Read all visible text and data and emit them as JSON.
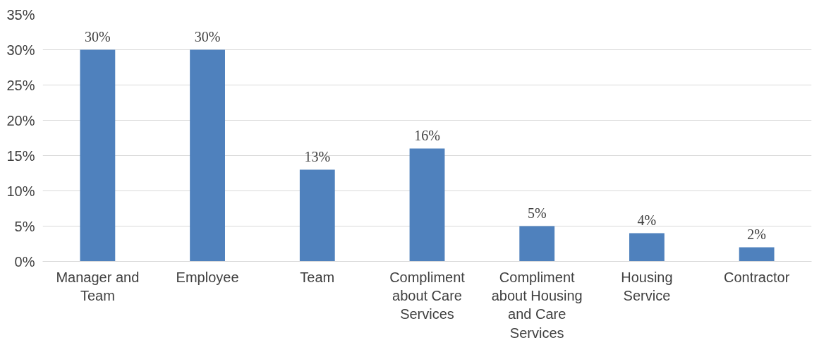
{
  "chart_data": {
    "type": "bar",
    "categories": [
      "Manager and Team",
      "Employee",
      "Team",
      "Compliment about Care Services",
      "Compliment about Housing and Care Services",
      "Housing Service",
      "Contractor"
    ],
    "values": [
      30,
      30,
      13,
      16,
      5,
      4,
      2
    ],
    "color": "#4f81bd",
    "data_labels": true,
    "value_labels": [
      "30%",
      "30%",
      "13%",
      "16%",
      "5%",
      "4%",
      "2%"
    ],
    "ylim": [
      0,
      35
    ],
    "yticks": [
      {
        "value": 0,
        "label": "0%"
      },
      {
        "value": 5,
        "label": "5%"
      },
      {
        "value": 10,
        "label": "10%"
      },
      {
        "value": 15,
        "label": "15%"
      },
      {
        "value": 20,
        "label": "20%"
      },
      {
        "value": 25,
        "label": "25%"
      },
      {
        "value": 30,
        "label": "30%"
      },
      {
        "value": 35,
        "label": "35%"
      }
    ],
    "grid": "y"
  }
}
